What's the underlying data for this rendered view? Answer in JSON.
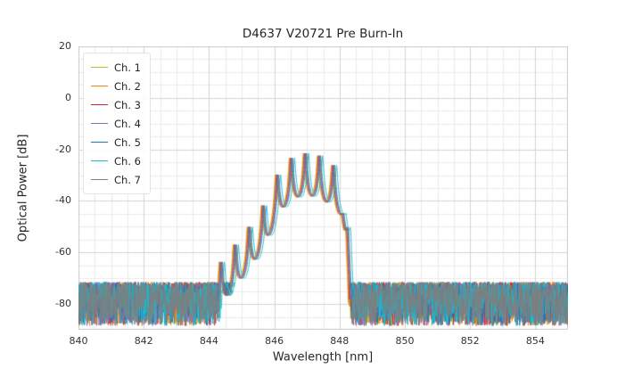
{
  "chart_data": {
    "type": "line",
    "title": "D4637 V20721 Pre Burn-In",
    "xlabel": "Wavelength [nm]",
    "ylabel": "Optical Power [dB]",
    "xlim": [
      840,
      855
    ],
    "ylim": [
      -90,
      20
    ],
    "xticks": [
      840,
      842,
      844,
      846,
      848,
      850,
      852,
      854
    ],
    "yticks": [
      20,
      0,
      -20,
      -40,
      -60,
      -80
    ],
    "x_minor_step": 0.5,
    "y_minor_step": 5,
    "grid": true,
    "legend_position": "upper-left",
    "noise_floor": {
      "top_db": -71.5,
      "bottom_db": -88.5,
      "exponent": 1.4
    },
    "signal": {
      "mode_spacing_nm": 0.43,
      "mode_center_nm": 846.95,
      "ripple_depth_factor": 40,
      "envelope_x": [
        844.1,
        844.35,
        844.8,
        845.3,
        845.75,
        846.15,
        846.55,
        846.95,
        847.4,
        847.85,
        848.1,
        848.3,
        848.4
      ],
      "envelope_db": [
        -80,
        -64,
        -57,
        -49,
        -40,
        -28,
        -23,
        -21.5,
        -22.5,
        -26.5,
        -30,
        -60,
        -95
      ]
    },
    "series": [
      {
        "name": "Ch. 1",
        "color": "#bcbd22",
        "shift_nm": -0.06,
        "seed": 101
      },
      {
        "name": "Ch. 2",
        "color": "#ff7f0e",
        "shift_nm": -0.04,
        "seed": 102
      },
      {
        "name": "Ch. 3",
        "color": "#d62728",
        "shift_nm": -0.02,
        "seed": 103
      },
      {
        "name": "Ch. 4",
        "color": "#9467bd",
        "shift_nm": 0.0,
        "seed": 104
      },
      {
        "name": "Ch. 5",
        "color": "#1f77b4",
        "shift_nm": 0.02,
        "seed": 105
      },
      {
        "name": "Ch. 6",
        "color": "#17becf",
        "shift_nm": 0.1,
        "seed": 106
      },
      {
        "name": "Ch. 7",
        "color": "#7f7f7f",
        "shift_nm": 0.04,
        "seed": 107
      }
    ],
    "colors": {
      "grid_major": "#d4d4d4",
      "grid_minor": "#ebebeb",
      "plot_border": "#cccccc",
      "background": "#ffffff",
      "text": "#262626"
    }
  }
}
